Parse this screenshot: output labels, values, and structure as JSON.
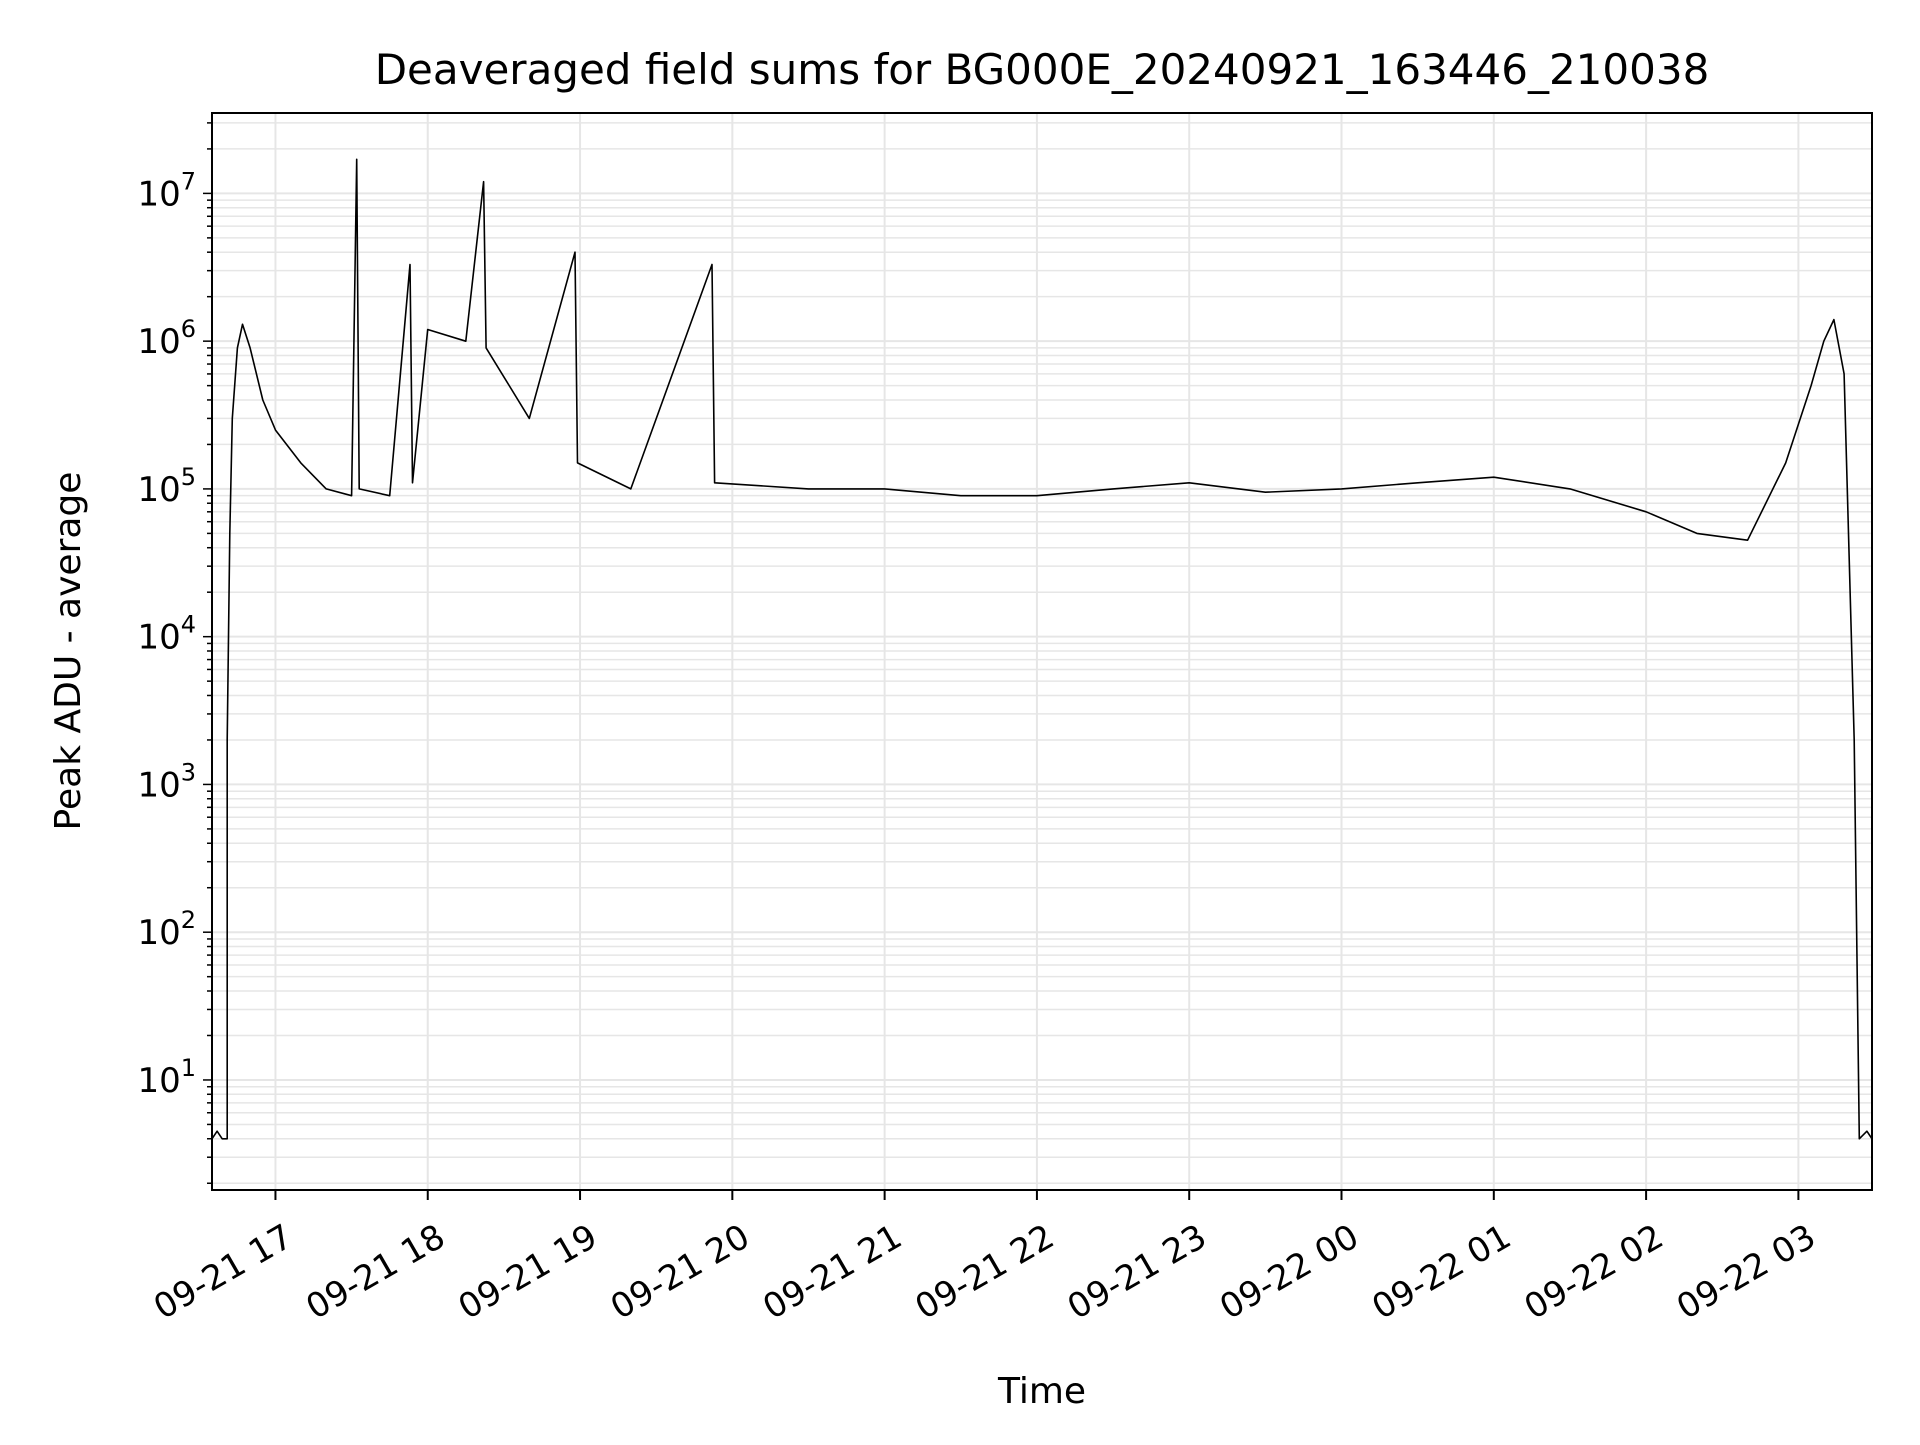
{
  "chart_data": {
    "type": "line",
    "title": "Deaveraged field sums for BG000E_20240921_163446_210038",
    "xlabel": "Time",
    "ylabel": "Peak ADU - average",
    "yscale": "log",
    "xlim": [
      "2024-09-21 16:35",
      "2024-09-22 03:29"
    ],
    "ylim": [
      1.8,
      35000000
    ],
    "grid": true,
    "x_tick_labels": [
      "09-21 17",
      "09-21 18",
      "09-21 19",
      "09-21 20",
      "09-21 21",
      "09-21 22",
      "09-21 23",
      "09-22 00",
      "09-22 01",
      "09-22 02",
      "09-22 03"
    ],
    "x_tick_times": [
      "2024-09-21 17:00",
      "2024-09-21 18:00",
      "2024-09-21 19:00",
      "2024-09-21 20:00",
      "2024-09-21 21:00",
      "2024-09-21 22:00",
      "2024-09-21 23:00",
      "2024-09-22 00:00",
      "2024-09-22 01:00",
      "2024-09-22 02:00",
      "2024-09-22 03:00"
    ],
    "y_ticks": [
      {
        "value": 10,
        "base": "10",
        "exp": "1"
      },
      {
        "value": 100,
        "base": "10",
        "exp": "2"
      },
      {
        "value": 1000,
        "base": "10",
        "exp": "3"
      },
      {
        "value": 10000,
        "base": "10",
        "exp": "4"
      },
      {
        "value": 100000,
        "base": "10",
        "exp": "5"
      },
      {
        "value": 1000000,
        "base": "10",
        "exp": "6"
      },
      {
        "value": 10000000,
        "base": "10",
        "exp": "7"
      }
    ],
    "line_color": "#000000",
    "grid_color": "#e6e6e6",
    "series": [
      {
        "points": [
          [
            "2024-09-21 16:35",
            4
          ],
          [
            "2024-09-21 16:37",
            4.5
          ],
          [
            "2024-09-21 16:39",
            4
          ],
          [
            "2024-09-21 16:41",
            4
          ],
          [
            "2024-09-21 16:41",
            2000
          ],
          [
            "2024-09-21 16:42",
            50000
          ],
          [
            "2024-09-21 16:43",
            300000
          ],
          [
            "2024-09-21 16:45",
            900000
          ],
          [
            "2024-09-21 16:47",
            1300000
          ],
          [
            "2024-09-21 16:50",
            900000
          ],
          [
            "2024-09-21 16:55",
            400000
          ],
          [
            "2024-09-21 17:00",
            250000
          ],
          [
            "2024-09-21 17:10",
            150000
          ],
          [
            "2024-09-21 17:20",
            100000
          ],
          [
            "2024-09-21 17:30",
            90000
          ],
          [
            "2024-09-21 17:32",
            17000000
          ],
          [
            "2024-09-21 17:33",
            100000
          ],
          [
            "2024-09-21 17:45",
            90000
          ],
          [
            "2024-09-21 17:53",
            3300000
          ],
          [
            "2024-09-21 17:54",
            110000
          ],
          [
            "2024-09-21 18:00",
            1200000
          ],
          [
            "2024-09-21 18:15",
            1000000
          ],
          [
            "2024-09-21 18:22",
            12000000
          ],
          [
            "2024-09-21 18:23",
            900000
          ],
          [
            "2024-09-21 18:40",
            300000
          ],
          [
            "2024-09-21 18:58",
            4000000
          ],
          [
            "2024-09-21 18:59",
            150000
          ],
          [
            "2024-09-21 19:20",
            100000
          ],
          [
            "2024-09-21 19:52",
            3300000
          ],
          [
            "2024-09-21 19:53",
            110000
          ],
          [
            "2024-09-21 20:30",
            100000
          ],
          [
            "2024-09-21 21:00",
            100000
          ],
          [
            "2024-09-21 21:30",
            90000
          ],
          [
            "2024-09-21 22:00",
            90000
          ],
          [
            "2024-09-21 22:30",
            100000
          ],
          [
            "2024-09-21 23:00",
            110000
          ],
          [
            "2024-09-21 23:30",
            95000
          ],
          [
            "2024-09-22 00:00",
            100000
          ],
          [
            "2024-09-22 00:30",
            110000
          ],
          [
            "2024-09-22 01:00",
            120000
          ],
          [
            "2024-09-22 01:30",
            100000
          ],
          [
            "2024-09-22 02:00",
            70000
          ],
          [
            "2024-09-22 02:20",
            50000
          ],
          [
            "2024-09-22 02:40",
            45000
          ],
          [
            "2024-09-22 02:55",
            150000
          ],
          [
            "2024-09-22 03:05",
            500000
          ],
          [
            "2024-09-22 03:10",
            1000000
          ],
          [
            "2024-09-22 03:14",
            1400000
          ],
          [
            "2024-09-22 03:18",
            600000
          ],
          [
            "2024-09-22 03:22",
            2000
          ],
          [
            "2024-09-22 03:24",
            4
          ],
          [
            "2024-09-22 03:27",
            4.5
          ],
          [
            "2024-09-22 03:29",
            4
          ]
        ]
      }
    ]
  }
}
